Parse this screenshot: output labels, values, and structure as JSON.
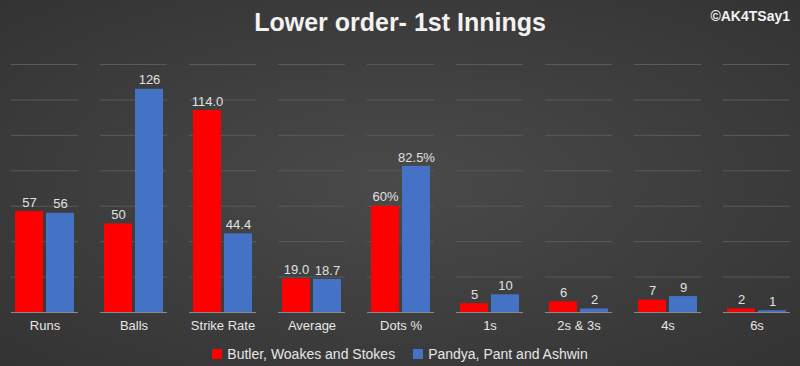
{
  "chart_data": {
    "type": "bar",
    "title": "Lower order- 1st Innings",
    "annotation": "©AK4TSay1",
    "categories": [
      "Runs",
      "Balls",
      "Strike Rate",
      "Average",
      "Dots %",
      "1s",
      "2s & 3s",
      "4s",
      "6s"
    ],
    "series": [
      {
        "name": "Butler, Woakes and Stokes",
        "color": "#ff0000",
        "values": [
          57,
          50,
          114.0,
          19.0,
          60,
          5,
          6,
          7,
          2
        ],
        "value_labels": [
          "57",
          "50",
          "114.0",
          "19.0",
          "60%",
          "5",
          "6",
          "7",
          "2"
        ]
      },
      {
        "name": "Pandya, Pant and Ashwin",
        "color": "#4472c4",
        "values": [
          56,
          126,
          44.4,
          18.7,
          82.5,
          10,
          2,
          9,
          1
        ],
        "value_labels": [
          "56",
          "126",
          "44.4",
          "18.7",
          "82.5%",
          "10",
          "2",
          "9",
          "1"
        ]
      }
    ],
    "ylim": [
      0,
      140
    ],
    "yticks": [
      0,
      20,
      40,
      60,
      80,
      100,
      120,
      140
    ],
    "grid": true,
    "data_labels": true,
    "tick_labels": "x",
    "legend": "bottom"
  }
}
